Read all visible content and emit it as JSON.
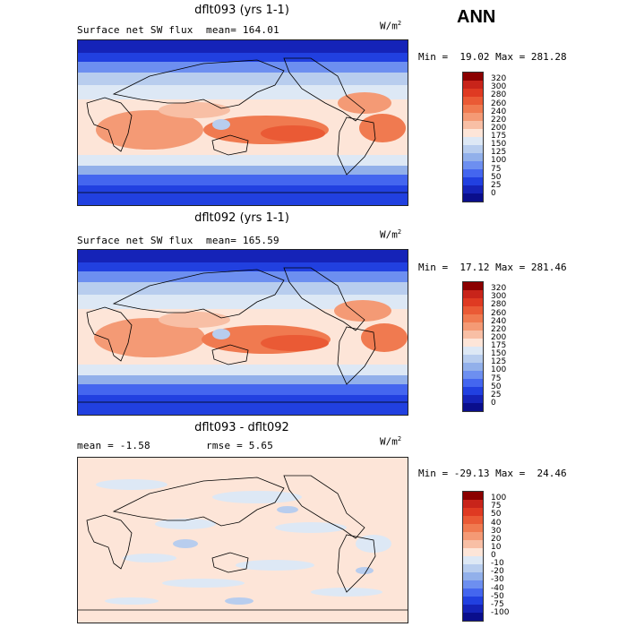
{
  "season": "ANN",
  "panels": [
    {
      "title": "dflt093 (yrs 1-1)",
      "left_stat": "Surface net SW flux",
      "right_stat": "mean= 164.01",
      "units": "W/m",
      "units_exp": "2",
      "minmax": "Min =  19.02 Max = 281.28",
      "colorbar_labels": [
        "320",
        "300",
        "280",
        "260",
        "240",
        "220",
        "200",
        "175",
        "150",
        "125",
        "100",
        "75",
        "50",
        "25",
        "0"
      ],
      "colors": [
        "#8b0000",
        "#c8241a",
        "#df3a22",
        "#ea5a35",
        "#f07a50",
        "#f49a75",
        "#f8bfa5",
        "#fde5d8",
        "#dde8f5",
        "#b8cdee",
        "#92b0ea",
        "#6d8ff0",
        "#4466ef",
        "#2140e0",
        "#1523b8",
        "#0a0e8c"
      ]
    },
    {
      "title": "dflt092 (yrs 1-1)",
      "left_stat": "Surface net SW flux",
      "right_stat": "mean= 165.59",
      "units": "W/m",
      "units_exp": "2",
      "minmax": "Min =  17.12 Max = 281.46",
      "colorbar_labels": [
        "320",
        "300",
        "280",
        "260",
        "240",
        "220",
        "200",
        "175",
        "150",
        "125",
        "100",
        "75",
        "50",
        "25",
        "0"
      ],
      "colors": [
        "#8b0000",
        "#c8241a",
        "#df3a22",
        "#ea5a35",
        "#f07a50",
        "#f49a75",
        "#f8bfa5",
        "#fde5d8",
        "#dde8f5",
        "#b8cdee",
        "#92b0ea",
        "#6d8ff0",
        "#4466ef",
        "#2140e0",
        "#1523b8",
        "#0a0e8c"
      ]
    },
    {
      "title": "dflt093 - dflt092",
      "left_stat": "mean =   -1.58",
      "right_stat": "rmse =   5.65",
      "units": "W/m",
      "units_exp": "2",
      "minmax": "Min = -29.13 Max =  24.46",
      "colorbar_labels": [
        "100",
        "75",
        "50",
        "40",
        "30",
        "20",
        "10",
        "0",
        "-10",
        "-20",
        "-30",
        "-40",
        "-50",
        "-75",
        "-100"
      ],
      "colors": [
        "#8b0000",
        "#c8241a",
        "#df3a22",
        "#ea5a35",
        "#f07a50",
        "#f49a75",
        "#f8bfa5",
        "#fde5d8",
        "#dde8f5",
        "#b8cdee",
        "#92b0ea",
        "#6d8ff0",
        "#4466ef",
        "#2140e0",
        "#1523b8",
        "#0a0e8c"
      ]
    }
  ]
}
